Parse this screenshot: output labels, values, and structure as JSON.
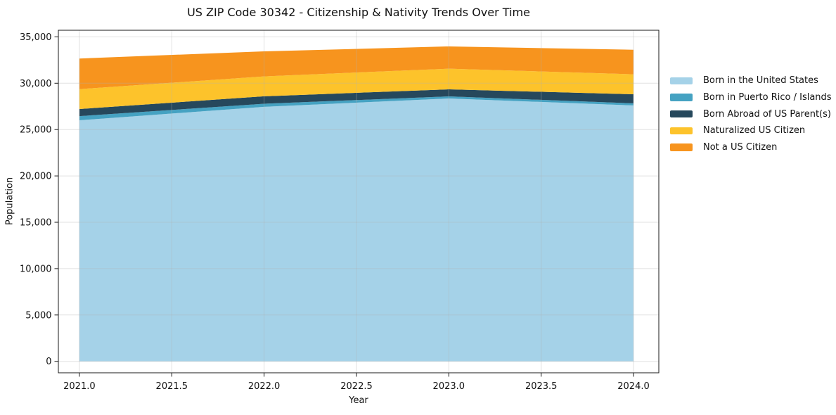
{
  "figure": {
    "title": "US ZIP Code 30342 - Citizenship & Nativity Trends Over Time",
    "xlabel": "Year",
    "ylabel": "Population"
  },
  "chart_data": {
    "type": "area",
    "stacked": true,
    "title": "US ZIP Code 30342 - Citizenship & Nativity Trends Over Time",
    "xlabel": "Year",
    "ylabel": "Population",
    "x": [
      2021,
      2022,
      2023,
      2024
    ],
    "series": [
      {
        "name": "Born in the United States",
        "color": "#A5D2E8",
        "values": [
          26000,
          27450,
          28350,
          27600
        ]
      },
      {
        "name": "Born in Puerto Rico / Islands",
        "color": "#45A2C2",
        "values": [
          450,
          330,
          225,
          225
        ]
      },
      {
        "name": "Born Abroad of US Parent(s)",
        "color": "#26485C",
        "values": [
          760,
          805,
          760,
          985
        ]
      },
      {
        "name": "Naturalized US Citizen",
        "color": "#FDC32B",
        "values": [
          2150,
          2150,
          2230,
          2150
        ]
      },
      {
        "name": "Not a US Citizen",
        "color": "#F7941E",
        "values": [
          3300,
          2700,
          2400,
          2650
        ]
      }
    ],
    "totals": [
      32660,
      33435,
      33965,
      33610
    ],
    "xticks": [
      2021.0,
      2021.5,
      2022.0,
      2022.5,
      2023.0,
      2023.5,
      2024.0
    ],
    "yticks": [
      0,
      5000,
      10000,
      15000,
      20000,
      25000,
      30000,
      35000
    ],
    "xlim": [
      2020.886,
      2024.137
    ],
    "ylim": [
      -1236,
      35710
    ],
    "grid": true,
    "grid_color": "rgba(176,176,176,0.38)",
    "spine_color": "#1a1a1a",
    "legend_position": "outside-right"
  }
}
